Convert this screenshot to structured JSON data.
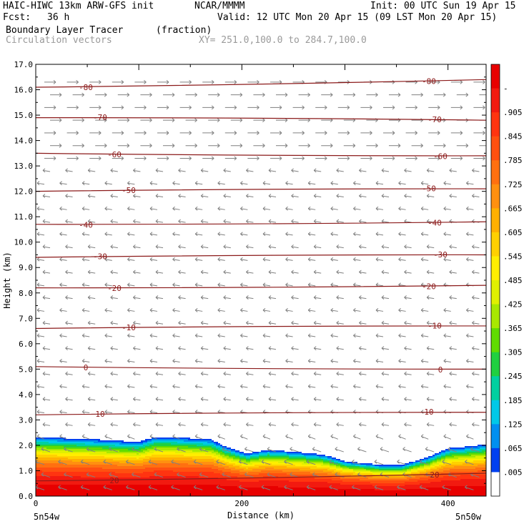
{
  "header": {
    "model": "HAIC-HIWC 13km ARW-GFS init",
    "org": "NCAR/MMMM",
    "init": "Init: 00 UTC Sun 19 Apr 15",
    "fcst_label": "Fcst:",
    "fcst_value": "36 h",
    "valid": "Valid: 12 UTC Mon 20 Apr 15 (09 LST Mon 20 Apr 15)",
    "field_name": "Boundary Layer Tracer",
    "field_units": "(fraction)",
    "vector_name": "Circulation vectors",
    "xy_range": "XY= 251.0,100.0 to 284.7,100.0"
  },
  "chart_data": {
    "type": "cross-section",
    "ylabel": "Height (km)",
    "xlabel": "Distance (km)",
    "ylim": [
      0,
      17
    ],
    "xlim": [
      0,
      437
    ],
    "y_ticks": [
      "0.0",
      "1.0",
      "2.0",
      "3.0",
      "4.0",
      "5.0",
      "6.0",
      "7.0",
      "8.0",
      "9.0",
      "10.0",
      "11.0",
      "12.0",
      "13.0",
      "14.0",
      "15.0",
      "16.0",
      "17.0"
    ],
    "x_ticks": [
      {
        "value": 0,
        "label": "0"
      },
      {
        "value": 200,
        "label": "200"
      },
      {
        "value": 400,
        "label": "400"
      }
    ],
    "left_endpoint": "5n54w",
    "right_endpoint": "5n50w",
    "tracer_top_km": [
      {
        "x": 0,
        "top": 2.3
      },
      {
        "x": 60,
        "top": 2.2
      },
      {
        "x": 100,
        "top": 2.1
      },
      {
        "x": 115,
        "top": 2.3
      },
      {
        "x": 130,
        "top": 2.3
      },
      {
        "x": 170,
        "top": 2.2
      },
      {
        "x": 185,
        "top": 1.9
      },
      {
        "x": 205,
        "top": 1.65
      },
      {
        "x": 225,
        "top": 1.8
      },
      {
        "x": 255,
        "top": 1.7
      },
      {
        "x": 280,
        "top": 1.6
      },
      {
        "x": 300,
        "top": 1.35
      },
      {
        "x": 335,
        "top": 1.2
      },
      {
        "x": 355,
        "top": 1.2
      },
      {
        "x": 380,
        "top": 1.5
      },
      {
        "x": 400,
        "top": 1.85
      },
      {
        "x": 437,
        "top": 2.0
      }
    ],
    "contours": [
      {
        "label": "-80",
        "left": 16.1,
        "right": 16.4
      },
      {
        "label": "-70",
        "left": 14.9,
        "right": 14.8
      },
      {
        "label": "-60",
        "left": 13.5,
        "right": 13.4
      },
      {
        "label": "-50",
        "left": 12.0,
        "right": 12.1
      },
      {
        "label": "-40",
        "left": 10.7,
        "right": 10.8
      },
      {
        "label": "-30",
        "left": 9.4,
        "right": 9.5
      },
      {
        "label": "-20",
        "left": 8.2,
        "right": 8.3
      },
      {
        "label": "-10",
        "left": 6.6,
        "right": 6.7
      },
      {
        "label": "0",
        "left": 5.1,
        "right": 5.0
      },
      {
        "label": "10",
        "left": 3.2,
        "right": 3.3
      },
      {
        "label": "20",
        "left": 0.6,
        "right": 0.9
      }
    ],
    "colorbar": {
      "labels": [
        "-",
        ".905",
        ".845",
        ".785",
        ".725",
        ".665",
        ".605",
        ".545",
        ".485",
        ".425",
        ".365",
        ".305",
        ".245",
        ".185",
        ".125",
        ".065",
        ".005"
      ],
      "colors": [
        "#e80000",
        "#f21a10",
        "#ff3410",
        "#ff5010",
        "#ff7010",
        "#ff9010",
        "#ffb000",
        "#ffd000",
        "#ffee00",
        "#e0f000",
        "#a8e800",
        "#60dc00",
        "#20d040",
        "#00d0a0",
        "#00c8e8",
        "#0090f0",
        "#0040f0",
        "#ffffff"
      ]
    }
  }
}
